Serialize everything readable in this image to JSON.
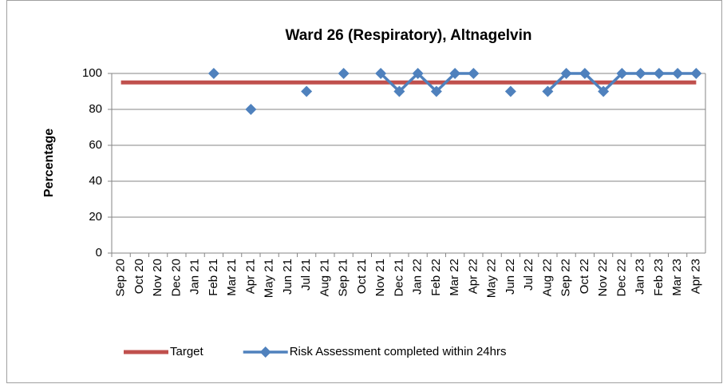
{
  "chart_data": {
    "type": "line",
    "title": "Ward 26 (Respiratory), Altnagelvin",
    "y_label": "Percentage",
    "categories": [
      "Sep 20",
      "Oct 20",
      "Nov 20",
      "Dec 20",
      "Jan 21",
      "Feb 21",
      "Mar 21",
      "Apr 21",
      "May 21",
      "Jun 21",
      "Jul 21",
      "Aug 21",
      "Sep 21",
      "Oct 21",
      "Nov 21",
      "Dec 21",
      "Jan 22",
      "Feb 22",
      "Mar 22",
      "Apr 22",
      "May 22",
      "Jun 22",
      "Jul 22",
      "Aug 22",
      "Sep 22",
      "Oct 22",
      "Nov 22",
      "Dec 22",
      "Jan 23",
      "Feb 23",
      "Mar 23",
      "Apr 23"
    ],
    "series": [
      {
        "name": "Target",
        "color": "#c0504d",
        "marker": "none",
        "values": [
          95,
          95,
          95,
          95,
          95,
          95,
          95,
          95,
          95,
          95,
          95,
          95,
          95,
          95,
          95,
          95,
          95,
          95,
          95,
          95,
          95,
          95,
          95,
          95,
          95,
          95,
          95,
          95,
          95,
          95,
          95,
          95
        ]
      },
      {
        "name": "Risk Assessment completed within 24hrs",
        "color": "#4f81bd",
        "marker": "diamond",
        "values": [
          null,
          null,
          null,
          null,
          null,
          100,
          null,
          80,
          null,
          null,
          90,
          null,
          100,
          null,
          100,
          90,
          100,
          90,
          100,
          100,
          null,
          90,
          null,
          90,
          100,
          100,
          90,
          100,
          100,
          100,
          100,
          100
        ]
      }
    ],
    "ylim": [
      0,
      100
    ],
    "yticks": [
      0,
      20,
      40,
      60,
      80,
      100
    ],
    "grid": true,
    "legend": "bottom"
  }
}
